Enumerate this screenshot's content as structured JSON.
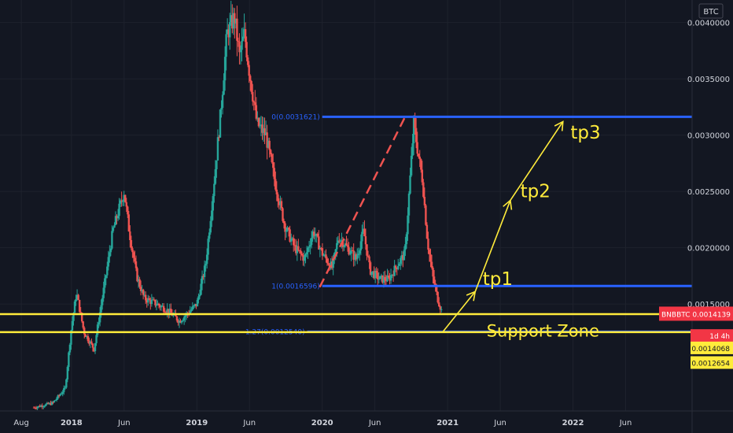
{
  "chart_data": {
    "type": "candlestick",
    "symbol": "BNBBTC",
    "currency_badge": "BTC",
    "x_labels": [
      {
        "label": "Aug",
        "x": 2017.6
      },
      {
        "label": "2018",
        "x": 2018.0
      },
      {
        "label": "Jun",
        "x": 2018.42
      },
      {
        "label": "2019",
        "x": 2019.0
      },
      {
        "label": "Jun",
        "x": 2019.42
      },
      {
        "label": "2020",
        "x": 2020.0
      },
      {
        "label": "Jun",
        "x": 2020.42
      },
      {
        "label": "2021",
        "x": 2021.0
      },
      {
        "label": "Jun",
        "x": 2021.42
      },
      {
        "label": "2022",
        "x": 2022.0
      },
      {
        "label": "Jun",
        "x": 2022.42
      }
    ],
    "y_ticks": [
      "0.0040000",
      "0.0035000",
      "0.0030000",
      "0.0025000",
      "0.0020000",
      "0.0015000"
    ],
    "y_tick_values": [
      0.004,
      0.0035,
      0.003,
      0.0025,
      0.002,
      0.0015
    ],
    "y_range": [
      0.00055,
      0.0042
    ],
    "x_range": [
      2017.43,
      2022.95
    ],
    "price_path": [
      [
        2017.7,
        0.00058
      ],
      [
        2017.85,
        0.00062
      ],
      [
        2017.95,
        0.00075
      ],
      [
        2018.0,
        0.0013
      ],
      [
        2018.04,
        0.0016
      ],
      [
        2018.1,
        0.00125
      ],
      [
        2018.18,
        0.0011
      ],
      [
        2018.26,
        0.00165
      ],
      [
        2018.33,
        0.00215
      ],
      [
        2018.42,
        0.0025
      ],
      [
        2018.46,
        0.00215
      ],
      [
        2018.52,
        0.00175
      ],
      [
        2018.58,
        0.00155
      ],
      [
        2018.68,
        0.0015
      ],
      [
        2018.76,
        0.00145
      ],
      [
        2018.86,
        0.00135
      ],
      [
        2018.93,
        0.00142
      ],
      [
        2019.0,
        0.0015
      ],
      [
        2019.07,
        0.00185
      ],
      [
        2019.13,
        0.0025
      ],
      [
        2019.19,
        0.0032
      ],
      [
        2019.24,
        0.0039
      ],
      [
        2019.3,
        0.00405
      ],
      [
        2019.34,
        0.0037
      ],
      [
        2019.38,
        0.0039
      ],
      [
        2019.42,
        0.00355
      ],
      [
        2019.48,
        0.0031
      ],
      [
        2019.55,
        0.003
      ],
      [
        2019.62,
        0.0026
      ],
      [
        2019.7,
        0.0022
      ],
      [
        2019.78,
        0.002
      ],
      [
        2019.86,
        0.0019
      ],
      [
        2019.93,
        0.00215
      ],
      [
        2020.0,
        0.00195
      ],
      [
        2020.08,
        0.00182
      ],
      [
        2020.13,
        0.0021
      ],
      [
        2020.2,
        0.002
      ],
      [
        2020.27,
        0.0019
      ],
      [
        2020.33,
        0.00215
      ],
      [
        2020.38,
        0.0018
      ],
      [
        2020.46,
        0.00172
      ],
      [
        2020.53,
        0.00172
      ],
      [
        2020.6,
        0.00185
      ],
      [
        2020.66,
        0.00195
      ],
      [
        2020.7,
        0.0026
      ],
      [
        2020.73,
        0.0031
      ],
      [
        2020.77,
        0.0028
      ],
      [
        2020.8,
        0.0026
      ],
      [
        2020.84,
        0.00205
      ],
      [
        2020.88,
        0.00175
      ],
      [
        2020.92,
        0.00155
      ],
      [
        2020.96,
        0.00141
      ]
    ],
    "fib_levels": [
      {
        "label": "0(0.0031621)",
        "value": 0.0031621,
        "x_start": 2020.0,
        "color": "#2962ff"
      },
      {
        "label": "1(0.0016596)",
        "value": 0.0016596,
        "x_start": 2020.0,
        "color": "#2962ff"
      },
      {
        "label": "1.27(0.0012540)",
        "value": 0.001254,
        "x_start": 2019.88,
        "color": "#2962ff"
      }
    ],
    "support_lines": [
      0.00141,
      0.00125
    ],
    "support_color": "#ffeb3b",
    "dashed_trend": [
      [
        2019.98,
        0.00165
      ],
      [
        2020.66,
        0.00316
      ]
    ],
    "arrow_path": [
      [
        2020.96,
        0.00125
      ],
      [
        2021.22,
        0.00161
      ],
      [
        2021.5,
        0.00242
      ],
      [
        2021.92,
        0.00312
      ]
    ],
    "annotations": [
      {
        "text": "tp1",
        "x": 2021.28,
        "y": 0.00167
      },
      {
        "text": "tp2",
        "x": 2021.58,
        "y": 0.00245
      },
      {
        "text": "tp3",
        "x": 2021.98,
        "y": 0.00297
      },
      {
        "text": "Support Zone",
        "x": 2021.76,
        "y": 0.00121
      }
    ],
    "price_labels": [
      {
        "text": "BNBBTC",
        "value": "0.0014139",
        "y": 0.0014139,
        "color": "#f23645"
      },
      {
        "text": "1d 4h",
        "y": 0.00122,
        "color": "#f23645"
      },
      {
        "text": "0.0014068",
        "y": 0.00111,
        "color": "#ffeb3b"
      },
      {
        "text": "0.0012654",
        "y": 0.00098,
        "color": "#ffeb3b"
      }
    ],
    "up_color": "#26a69a",
    "down_color": "#ef5350",
    "annotation_color": "#ffeb3b"
  }
}
